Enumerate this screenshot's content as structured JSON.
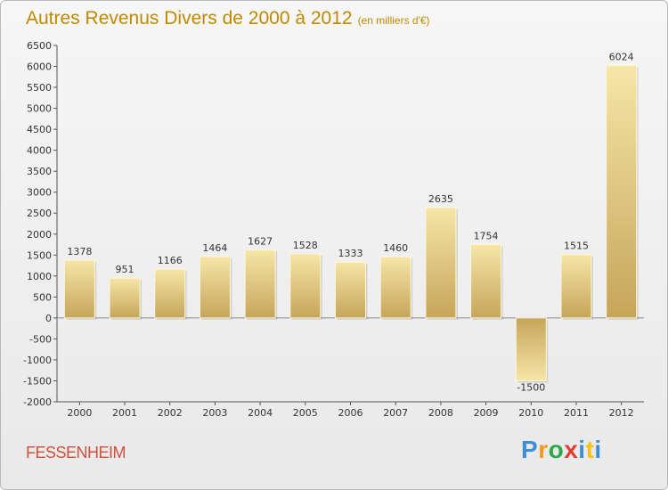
{
  "header": {
    "title": "Autres Revenus Divers de 2000 à 2012",
    "subtitle": "(en milliers d'€)"
  },
  "footer": {
    "city": "FESSENHEIM",
    "logo": "Proxiti",
    "logo_colors": [
      "#3a8fd6",
      "#f29a1c",
      "#2aa84a",
      "#e03c31",
      "#3a8fd6",
      "#f2c21c",
      "#3a8fd6"
    ]
  },
  "chart_data": {
    "type": "bar",
    "categories": [
      "2000",
      "2001",
      "2002",
      "2003",
      "2004",
      "2005",
      "2006",
      "2007",
      "2008",
      "2009",
      "2010",
      "2011",
      "2012"
    ],
    "values": [
      1378,
      951,
      1166,
      1464,
      1627,
      1528,
      1333,
      1460,
      2635,
      1754,
      -1500,
      1515,
      6024
    ],
    "data_labels": [
      "1378",
      "951",
      "1166",
      "1464",
      "1627",
      "1528",
      "1333",
      "1460",
      "2635",
      "1754",
      "-1500",
      "1515",
      "6024"
    ],
    "yticks": [
      "6500",
      "6000",
      "5500",
      "5000",
      "4500",
      "4000",
      "3500",
      "3000",
      "2500",
      "2000",
      "1500",
      "1000",
      "500",
      "0",
      "-500",
      "-1000",
      "-1500",
      "-2000"
    ],
    "ylim": [
      -2000,
      6500
    ],
    "grid": false,
    "legend": "none",
    "bar_color_light": "#f4e2a0",
    "bar_color_dark": "#c9aa58"
  }
}
